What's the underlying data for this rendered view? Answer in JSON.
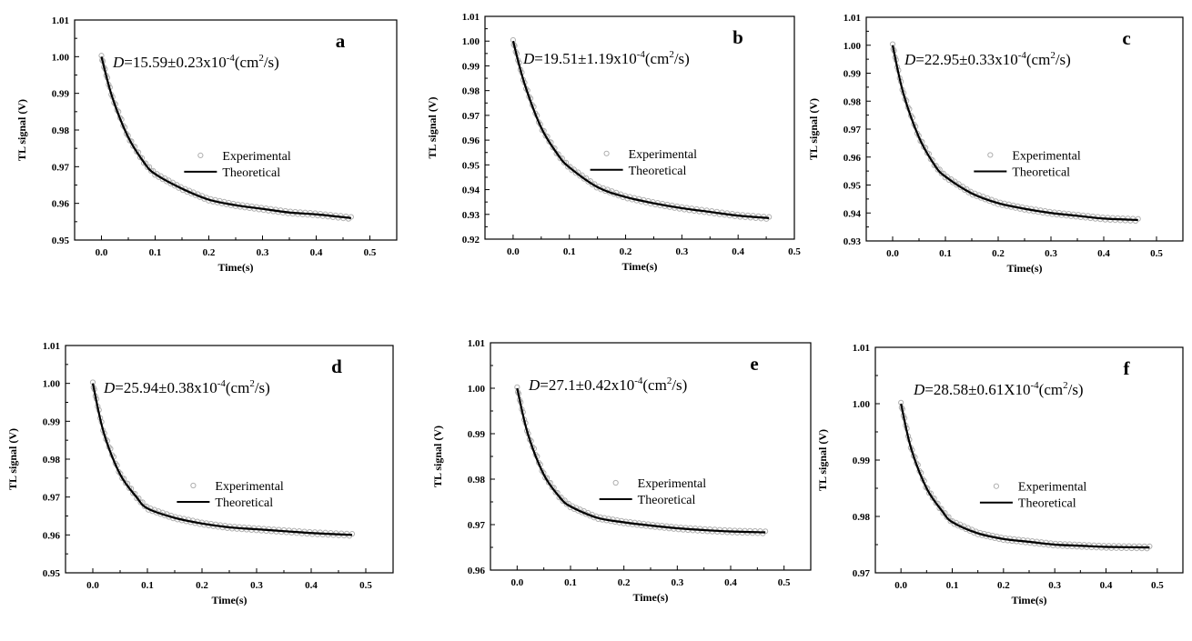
{
  "chart_data": [
    {
      "type": "scatter",
      "panel_label": "a",
      "annotation": {
        "var": "D",
        "value": "=15.59±0.23x10",
        "exp": "-4",
        "unit_a": "(cm",
        "unit_exp": "2",
        "unit_b": "/s)"
      },
      "xlabel": "Time(s)",
      "ylabel": "TL signal (V)",
      "xlim": [
        -0.05,
        0.55
      ],
      "ylim": [
        0.95,
        1.01
      ],
      "xticks": [
        "0.0",
        "0.1",
        "0.2",
        "0.3",
        "0.4",
        "0.5"
      ],
      "yticks": [
        "0.95",
        "0.96",
        "0.97",
        "0.98",
        "0.99",
        "1.00",
        "1.01"
      ],
      "legend": [
        "Experimental",
        "Theoretical"
      ],
      "legend_position": "center-right",
      "x_end": 0.465,
      "curve": {
        "x": [
          0.0,
          0.02,
          0.05,
          0.08,
          0.1,
          0.15,
          0.2,
          0.25,
          0.3,
          0.35,
          0.4,
          0.465
        ],
        "y": [
          1.0,
          0.989,
          0.978,
          0.971,
          0.968,
          0.964,
          0.961,
          0.9595,
          0.9585,
          0.9575,
          0.957,
          0.956
        ]
      },
      "series": [
        {
          "name": "Experimental",
          "marker": "open-circle",
          "color": "#b0b0b0"
        },
        {
          "name": "Theoretical",
          "line": "solid",
          "color": "#000000"
        }
      ]
    },
    {
      "type": "scatter",
      "panel_label": "b",
      "annotation": {
        "var": "D",
        "value": "=19.51±1.19x10",
        "exp": "-4",
        "unit_a": "(cm",
        "unit_exp": "2",
        "unit_b": "/s)"
      },
      "xlabel": "Time(s)",
      "ylabel": "TL signal (V)",
      "xlim": [
        -0.05,
        0.5
      ],
      "ylim": [
        0.92,
        1.01
      ],
      "xticks": [
        "0.0",
        "0.1",
        "0.2",
        "0.3",
        "0.4",
        "0.5"
      ],
      "yticks": [
        "0.92",
        "0.93",
        "0.94",
        "0.95",
        "0.96",
        "0.97",
        "0.98",
        "0.99",
        "1.00",
        "1.01"
      ],
      "legend": [
        "Experimental",
        "Theoretical"
      ],
      "legend_position": "center-right",
      "x_end": 0.455,
      "curve": {
        "x": [
          0.0,
          0.02,
          0.05,
          0.08,
          0.1,
          0.15,
          0.2,
          0.25,
          0.3,
          0.35,
          0.4,
          0.455
        ],
        "y": [
          1.0,
          0.983,
          0.965,
          0.954,
          0.949,
          0.941,
          0.937,
          0.9345,
          0.9325,
          0.931,
          0.9295,
          0.9285
        ]
      },
      "series": [
        {
          "name": "Experimental",
          "marker": "open-circle",
          "color": "#b0b0b0"
        },
        {
          "name": "Theoretical",
          "line": "solid",
          "color": "#000000"
        }
      ]
    },
    {
      "type": "scatter",
      "panel_label": "c",
      "annotation": {
        "var": "D",
        "value": "=22.95±0.33x10",
        "exp": "-4",
        "unit_a": "(cm",
        "unit_exp": "2",
        "unit_b": "/s)"
      },
      "xlabel": "Time(s)",
      "ylabel": "TL signal (V)",
      "xlim": [
        -0.05,
        0.55
      ],
      "ylim": [
        0.93,
        1.01
      ],
      "xticks": [
        "0.0",
        "0.1",
        "0.2",
        "0.3",
        "0.4",
        "0.5"
      ],
      "yticks": [
        "0.93",
        "0.94",
        "0.95",
        "0.96",
        "0.97",
        "0.98",
        "0.99",
        "1.00",
        "1.01"
      ],
      "legend": [
        "Experimental",
        "Theoretical"
      ],
      "legend_position": "center-right",
      "x_end": 0.465,
      "curve": {
        "x": [
          0.0,
          0.02,
          0.05,
          0.08,
          0.1,
          0.15,
          0.2,
          0.25,
          0.3,
          0.35,
          0.4,
          0.465
        ],
        "y": [
          1.0,
          0.983,
          0.967,
          0.957,
          0.953,
          0.947,
          0.9435,
          0.9415,
          0.94,
          0.939,
          0.938,
          0.9375
        ]
      },
      "series": [
        {
          "name": "Experimental",
          "marker": "open-circle",
          "color": "#b0b0b0"
        },
        {
          "name": "Theoretical",
          "line": "solid",
          "color": "#000000"
        }
      ]
    },
    {
      "type": "scatter",
      "panel_label": "d",
      "annotation": {
        "var": "D",
        "value": "=25.94±0.38x10",
        "exp": "-4",
        "unit_a": "(cm",
        "unit_exp": "2",
        "unit_b": "/s)"
      },
      "xlabel": "Time(s)",
      "ylabel": "TL signal (V)",
      "xlim": [
        -0.05,
        0.55
      ],
      "ylim": [
        0.95,
        1.01
      ],
      "xticks": [
        "0.0",
        "0.1",
        "0.2",
        "0.3",
        "0.4",
        "0.5"
      ],
      "yticks": [
        "0.95",
        "0.96",
        "0.97",
        "0.98",
        "0.99",
        "1.00",
        "1.01"
      ],
      "legend": [
        "Experimental",
        "Theoretical"
      ],
      "legend_position": "center-right",
      "x_end": 0.475,
      "curve": {
        "x": [
          0.0,
          0.02,
          0.05,
          0.08,
          0.1,
          0.15,
          0.2,
          0.25,
          0.3,
          0.35,
          0.4,
          0.475
        ],
        "y": [
          1.0,
          0.987,
          0.976,
          0.97,
          0.967,
          0.9645,
          0.963,
          0.962,
          0.9615,
          0.961,
          0.9605,
          0.96
        ]
      },
      "series": [
        {
          "name": "Experimental",
          "marker": "open-circle",
          "color": "#b0b0b0"
        },
        {
          "name": "Theoretical",
          "line": "solid",
          "color": "#000000"
        }
      ]
    },
    {
      "type": "scatter",
      "panel_label": "e",
      "annotation": {
        "var": "D",
        "value": "=27.1±0.42x10",
        "exp": "-4",
        "unit_a": "(cm",
        "unit_exp": "2",
        "unit_b": "/s)"
      },
      "xlabel": "Time(s)",
      "ylabel": "TL signal (V)",
      "xlim": [
        -0.05,
        0.55
      ],
      "ylim": [
        0.96,
        1.01
      ],
      "xticks": [
        "0.0",
        "0.1",
        "0.2",
        "0.3",
        "0.4",
        "0.5"
      ],
      "yticks": [
        "0.96",
        "0.97",
        "0.98",
        "0.99",
        "1.00",
        "1.01"
      ],
      "legend": [
        "Experimental",
        "Theoretical"
      ],
      "legend_position": "center-right",
      "x_end": 0.465,
      "curve": {
        "x": [
          0.0,
          0.02,
          0.05,
          0.08,
          0.1,
          0.15,
          0.2,
          0.25,
          0.3,
          0.35,
          0.4,
          0.465
        ],
        "y": [
          1.0,
          0.99,
          0.981,
          0.976,
          0.974,
          0.9715,
          0.9705,
          0.9698,
          0.9692,
          0.9688,
          0.9685,
          0.9683
        ]
      },
      "series": [
        {
          "name": "Experimental",
          "marker": "open-circle",
          "color": "#b0b0b0"
        },
        {
          "name": "Theoretical",
          "line": "solid",
          "color": "#000000"
        }
      ]
    },
    {
      "type": "scatter",
      "panel_label": "f",
      "annotation": {
        "var": "D",
        "value": "=28.58±0.61X10",
        "exp": "-4",
        "unit_a": "(cm",
        "unit_exp": "2",
        "unit_b": "/s)"
      },
      "xlabel": "Time(s)",
      "ylabel": "TL signal (V)",
      "xlim": [
        -0.05,
        0.55
      ],
      "ylim": [
        0.97,
        1.01
      ],
      "xticks": [
        "0.0",
        "0.1",
        "0.2",
        "0.3",
        "0.4",
        "0.5"
      ],
      "yticks": [
        "0.97",
        "0.98",
        "0.99",
        "1.00",
        "1.01"
      ],
      "legend": [
        "Experimental",
        "Theoretical"
      ],
      "legend_position": "center-right",
      "x_end": 0.485,
      "curve": {
        "x": [
          0.0,
          0.02,
          0.05,
          0.08,
          0.1,
          0.15,
          0.2,
          0.25,
          0.3,
          0.35,
          0.4,
          0.485
        ],
        "y": [
          1.0,
          0.992,
          0.985,
          0.981,
          0.979,
          0.977,
          0.976,
          0.9755,
          0.975,
          0.9748,
          0.9746,
          0.9745
        ]
      },
      "series": [
        {
          "name": "Experimental",
          "marker": "open-circle",
          "color": "#b0b0b0"
        },
        {
          "name": "Theoretical",
          "line": "solid",
          "color": "#000000"
        }
      ]
    }
  ]
}
